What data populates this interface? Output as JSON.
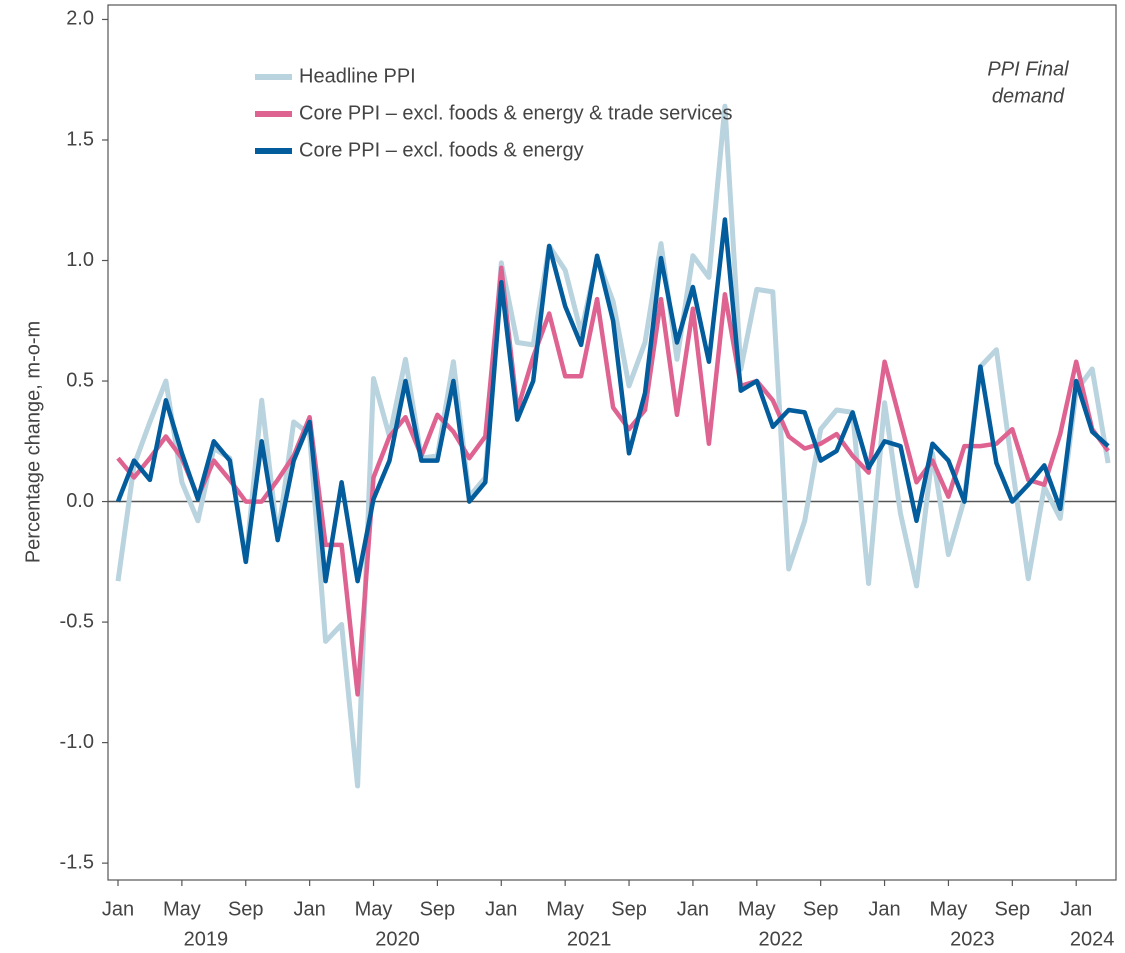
{
  "chart_data": {
    "type": "line",
    "ylabel": "Percentage change, m-o-m",
    "annotation_lines": [
      "PPI Final",
      "demand"
    ],
    "x": [
      "2019-01",
      "2019-02",
      "2019-03",
      "2019-04",
      "2019-05",
      "2019-06",
      "2019-07",
      "2019-08",
      "2019-09",
      "2019-10",
      "2019-11",
      "2019-12",
      "2020-01",
      "2020-02",
      "2020-03",
      "2020-04",
      "2020-05",
      "2020-06",
      "2020-07",
      "2020-08",
      "2020-09",
      "2020-10",
      "2020-11",
      "2020-12",
      "2021-01",
      "2021-02",
      "2021-03",
      "2021-04",
      "2021-05",
      "2021-06",
      "2021-07",
      "2021-08",
      "2021-09",
      "2021-10",
      "2021-11",
      "2021-12",
      "2022-01",
      "2022-02",
      "2022-03",
      "2022-04",
      "2022-05",
      "2022-06",
      "2022-07",
      "2022-08",
      "2022-09",
      "2022-10",
      "2022-11",
      "2022-12",
      "2023-01",
      "2023-02",
      "2023-03",
      "2023-04",
      "2023-05",
      "2023-06",
      "2023-07",
      "2023-08",
      "2023-09",
      "2023-10",
      "2023-11",
      "2023-12",
      "2024-01",
      "2024-02",
      "2024-03"
    ],
    "xticks": [
      {
        "value": "2019-01",
        "label": "Jan"
      },
      {
        "value": "2019-05",
        "label": "May"
      },
      {
        "value": "2019-09",
        "label": "Sep"
      },
      {
        "value": "2020-01",
        "label": "Jan"
      },
      {
        "value": "2020-05",
        "label": "May"
      },
      {
        "value": "2020-09",
        "label": "Sep"
      },
      {
        "value": "2021-01",
        "label": "Jan"
      },
      {
        "value": "2021-05",
        "label": "May"
      },
      {
        "value": "2021-09",
        "label": "Sep"
      },
      {
        "value": "2022-01",
        "label": "Jan"
      },
      {
        "value": "2022-05",
        "label": "May"
      },
      {
        "value": "2022-09",
        "label": "Sep"
      },
      {
        "value": "2023-01",
        "label": "Jan"
      },
      {
        "value": "2023-05",
        "label": "May"
      },
      {
        "value": "2023-09",
        "label": "Sep"
      },
      {
        "value": "2024-01",
        "label": "Jan"
      }
    ],
    "year_labels": [
      "2019",
      "2020",
      "2021",
      "2022",
      "2023",
      "2024"
    ],
    "ylim": [
      -1.57,
      2.06
    ],
    "yticks": [
      {
        "value": -1.5,
        "label": "-1.5"
      },
      {
        "value": -1,
        "label": "-1.0"
      },
      {
        "value": -0.5,
        "label": "-0.5"
      },
      {
        "value": 0,
        "label": "0.0"
      },
      {
        "value": 0.5,
        "label": "0.5"
      },
      {
        "value": 1,
        "label": "1.0"
      },
      {
        "value": 1.5,
        "label": "1.5"
      },
      {
        "value": 2,
        "label": "2.0"
      }
    ],
    "zero_line": true,
    "legend": "upper left",
    "series": [
      {
        "name": "Headline PPI",
        "color": "#b9d3df",
        "values": [
          -0.33,
          0.15,
          0.33,
          0.5,
          0.08,
          -0.08,
          0.22,
          0.18,
          -0.25,
          0.42,
          -0.15,
          0.33,
          0.28,
          -0.58,
          -0.51,
          -1.18,
          0.51,
          0.27,
          0.59,
          0.18,
          0.19,
          0.58,
          0.02,
          0.1,
          0.99,
          0.66,
          0.65,
          1.06,
          0.96,
          0.7,
          1.01,
          0.83,
          0.48,
          0.66,
          1.07,
          0.59,
          1.02,
          0.93,
          1.64,
          0.55,
          0.88,
          0.87,
          -0.28,
          -0.08,
          0.3,
          0.38,
          0.37,
          -0.34,
          0.41,
          -0.05,
          -0.35,
          0.2,
          -0.22,
          0.01,
          0.56,
          0.63,
          0.14,
          -0.32,
          0.06,
          -0.07,
          0.46,
          0.55,
          0.16
        ]
      },
      {
        "name": "Core PPI – excl. foods & energy & trade services",
        "color": "#df6391",
        "values": [
          0.18,
          0.1,
          0.18,
          0.27,
          0.18,
          0.02,
          0.17,
          0.09,
          0.0,
          0.0,
          0.09,
          0.19,
          0.35,
          -0.18,
          -0.18,
          -0.8,
          0.1,
          0.27,
          0.35,
          0.19,
          0.36,
          0.29,
          0.18,
          0.27,
          0.97,
          0.38,
          0.6,
          0.78,
          0.52,
          0.52,
          0.84,
          0.39,
          0.3,
          0.38,
          0.84,
          0.36,
          0.8,
          0.24,
          0.86,
          0.48,
          0.5,
          0.42,
          0.27,
          0.22,
          0.24,
          0.28,
          0.19,
          0.12,
          0.58,
          0.33,
          0.08,
          0.17,
          0.02,
          0.23,
          0.23,
          0.24,
          0.3,
          0.09,
          0.07,
          0.28,
          0.58,
          0.3,
          0.21
        ]
      },
      {
        "name": "Core PPI – excl. foods & energy",
        "color": "#035c9c",
        "values": [
          0.0,
          0.17,
          0.09,
          0.42,
          0.2,
          0.01,
          0.25,
          0.17,
          -0.25,
          0.25,
          -0.16,
          0.17,
          0.33,
          -0.33,
          0.08,
          -0.33,
          0.01,
          0.17,
          0.5,
          0.17,
          0.17,
          0.5,
          0.0,
          0.08,
          0.91,
          0.34,
          0.5,
          1.06,
          0.81,
          0.65,
          1.02,
          0.75,
          0.2,
          0.45,
          1.01,
          0.66,
          0.89,
          0.58,
          1.17,
          0.46,
          0.5,
          0.31,
          0.38,
          0.37,
          0.17,
          0.21,
          0.37,
          0.14,
          0.25,
          0.23,
          -0.08,
          0.24,
          0.17,
          0.0,
          0.56,
          0.16,
          0.0,
          0.07,
          0.15,
          -0.03,
          0.5,
          0.29,
          0.23
        ]
      }
    ]
  }
}
